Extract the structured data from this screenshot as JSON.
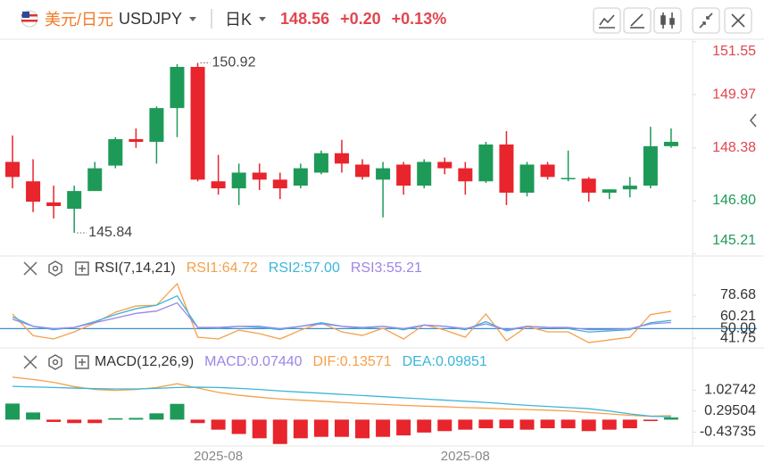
{
  "header": {
    "symbol_cn": "美元/日元",
    "symbol": "USDJPY",
    "period": "日K",
    "price": "148.56",
    "change": "+0.20",
    "change_pct": "+0.13%"
  },
  "chart_data": [
    {
      "type": "candlestick",
      "up_color": "#1e9a58",
      "down_color": "#e8242c",
      "categories": [
        null,
        null,
        null,
        null,
        null,
        null,
        null,
        null,
        null,
        null,
        "2025-08",
        null,
        null,
        null,
        null,
        null,
        null,
        null,
        null,
        null,
        null,
        null,
        "2025-08",
        null,
        null,
        null,
        null,
        null,
        null,
        null,
        null,
        null,
        null
      ],
      "open": [
        147.96,
        147.38,
        146.75,
        146.56,
        147.09,
        147.85,
        148.64,
        148.56,
        149.57,
        150.8,
        147.38,
        147.17,
        147.64,
        147.43,
        147.25,
        147.64,
        148.22,
        147.88,
        147.43,
        147.88,
        147.25,
        147.96,
        147.77,
        147.38,
        148.48,
        147.04,
        147.88,
        147.46,
        147.46,
        147.04,
        147.14,
        147.25,
        148.43
      ],
      "high": [
        148.75,
        148.04,
        147.25,
        147.25,
        147.96,
        148.7,
        148.96,
        149.62,
        150.88,
        150.92,
        148.17,
        147.91,
        147.91,
        147.64,
        147.91,
        148.3,
        148.62,
        148.04,
        147.96,
        147.96,
        148.04,
        148.09,
        147.96,
        148.56,
        148.88,
        147.96,
        147.96,
        148.3,
        147.51,
        147.14,
        147.51,
        149.01,
        148.96
      ],
      "low": [
        147.17,
        146.46,
        146.27,
        145.84,
        147.09,
        147.77,
        148.38,
        147.91,
        148.7,
        147.38,
        146.98,
        146.67,
        147.12,
        146.85,
        147.17,
        147.59,
        147.64,
        147.43,
        146.3,
        146.98,
        147.17,
        147.59,
        146.98,
        147.33,
        146.67,
        146.93,
        147.43,
        147.38,
        146.77,
        146.85,
        146.9,
        147.17,
        148.38
      ],
      "close": [
        147.51,
        146.77,
        146.64,
        147.09,
        147.77,
        148.64,
        148.56,
        149.57,
        150.8,
        147.43,
        147.17,
        147.64,
        147.43,
        147.17,
        147.77,
        148.22,
        147.91,
        147.51,
        147.77,
        147.25,
        147.96,
        147.77,
        147.38,
        148.48,
        147.04,
        147.88,
        147.51,
        147.48,
        147.04,
        147.14,
        147.25,
        148.43,
        148.56
      ],
      "ylim": [
        145.2,
        151.6
      ],
      "yticks": [
        145.21,
        {
          "value": 146.8,
          "label": "146.80"
        },
        148.38,
        149.97,
        151.55
      ],
      "ytick_colors": [
        "#1e9a58",
        "#1e9a58",
        "#e0464e",
        "#e0464e",
        "#e0464e"
      ]
    },
    {
      "type": "line",
      "title": "RSI(7,14,21)",
      "series": [
        {
          "name": "RSI1:64.72",
          "color": "#f5a04a",
          "values": [
            62.5,
            44,
            41.1,
            47.2,
            54.8,
            64.0,
            69.3,
            70,
            88.4,
            42.6,
            41.1,
            48.7,
            45.7,
            41.1,
            48.7,
            54.8,
            47.2,
            44.1,
            50.3,
            41.1,
            53.3,
            48.7,
            42.6,
            62.5,
            39.6,
            51.8,
            47.2,
            47.2,
            38.0,
            40.3,
            42.6,
            62.0,
            64.72
          ]
        },
        {
          "name": "RSI2:57.00",
          "color": "#3bb6d8",
          "values": [
            60,
            52,
            49,
            51,
            56,
            62,
            67,
            70,
            78,
            51,
            50,
            52,
            51,
            49,
            52,
            55,
            52,
            50,
            52,
            49,
            53,
            52,
            49,
            56,
            48,
            52,
            51,
            50,
            47,
            48,
            49,
            55,
            57.0
          ]
        },
        {
          "name": "RSI3:55.21",
          "color": "#9d85e6",
          "values": [
            58,
            52,
            50,
            51,
            55,
            59,
            63,
            65,
            72,
            51,
            51,
            52,
            52,
            50,
            52,
            54,
            52,
            51,
            52,
            50,
            53,
            52,
            50,
            54,
            49,
            52,
            51,
            51,
            49,
            49,
            50,
            54,
            55.21
          ]
        }
      ],
      "ylim": [
        35,
        93
      ],
      "yticks": [
        41.75,
        60.21,
        78.68
      ],
      "reference_lines": [
        {
          "value": 50,
          "label": "50.00",
          "color": "#3a8fd0"
        }
      ]
    },
    {
      "type": "macd",
      "title": "MACD(12,26,9)",
      "up_color": "#1e9a58",
      "down_color": "#e8242c",
      "series": [
        {
          "name": "MACD:0.07440",
          "type": "bar",
          "color": "#9d85e6",
          "values": [
            0.56,
            0.25,
            -0.08,
            -0.12,
            -0.12,
            0.05,
            0.06,
            0.22,
            0.55,
            -0.12,
            -0.35,
            -0.5,
            -0.65,
            -0.85,
            -0.65,
            -0.6,
            -0.6,
            -0.65,
            -0.6,
            -0.55,
            -0.45,
            -0.4,
            -0.35,
            -0.3,
            -0.3,
            -0.35,
            -0.3,
            -0.3,
            -0.4,
            -0.35,
            -0.3,
            -0.05,
            0.0744
          ]
        },
        {
          "name": "DIF:0.13571",
          "type": "line",
          "color": "#f5a04a",
          "values": [
            1.48,
            1.4,
            1.3,
            1.15,
            1.05,
            1.02,
            1.05,
            1.12,
            1.25,
            1.1,
            0.95,
            0.85,
            0.78,
            0.72,
            0.68,
            0.64,
            0.6,
            0.56,
            0.53,
            0.5,
            0.47,
            0.45,
            0.42,
            0.4,
            0.37,
            0.35,
            0.33,
            0.3,
            0.25,
            0.2,
            0.15,
            0.12,
            0.13571
          ]
        },
        {
          "name": "DEA:0.09851",
          "type": "line",
          "color": "#3bb6d8",
          "values": [
            1.16,
            1.14,
            1.12,
            1.1,
            1.08,
            1.07,
            1.07,
            1.09,
            1.12,
            1.13,
            1.12,
            1.09,
            1.05,
            1.0,
            0.96,
            0.92,
            0.88,
            0.84,
            0.8,
            0.76,
            0.72,
            0.68,
            0.64,
            0.6,
            0.55,
            0.5,
            0.46,
            0.42,
            0.38,
            0.3,
            0.2,
            0.12,
            0.09851
          ]
        }
      ],
      "ylim": [
        -0.92,
        1.63
      ],
      "yticks": [
        -0.43735,
        0.29504,
        1.02742
      ]
    }
  ]
}
